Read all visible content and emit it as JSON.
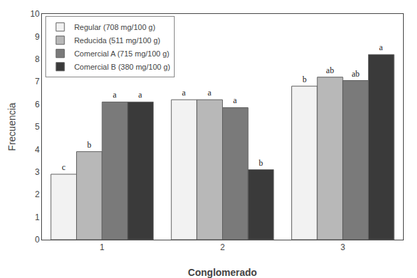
{
  "chart_data": {
    "type": "bar",
    "xlabel": "Conglomerado",
    "ylabel": "Frecuencia",
    "categories": [
      "1",
      "2",
      "3"
    ],
    "series": [
      {
        "name": "Regular (708 mg/100 g)",
        "color": "#f2f2f2",
        "values": [
          2.9,
          6.2,
          6.8
        ],
        "letters": [
          "c",
          "a",
          "b"
        ]
      },
      {
        "name": "Reducida (511 mg/100 g)",
        "color": "#b8b8b8",
        "values": [
          3.9,
          6.2,
          7.2
        ],
        "letters": [
          "b",
          "a",
          "ab"
        ]
      },
      {
        "name": "Comercial A (715 mg/100 g)",
        "color": "#7a7a7a",
        "values": [
          6.1,
          5.85,
          7.05
        ],
        "letters": [
          "a",
          "a",
          "ab"
        ]
      },
      {
        "name": "Comercial B (380 mg/100 g)",
        "color": "#3a3a3a",
        "values": [
          6.1,
          3.1,
          8.2
        ],
        "letters": [
          "a",
          "b",
          "a"
        ]
      }
    ],
    "ylim": [
      0,
      10
    ],
    "yticks": [
      0,
      1,
      2,
      3,
      4,
      5,
      6,
      7,
      8,
      9,
      10
    ],
    "grid": false,
    "legend": "upper left"
  }
}
